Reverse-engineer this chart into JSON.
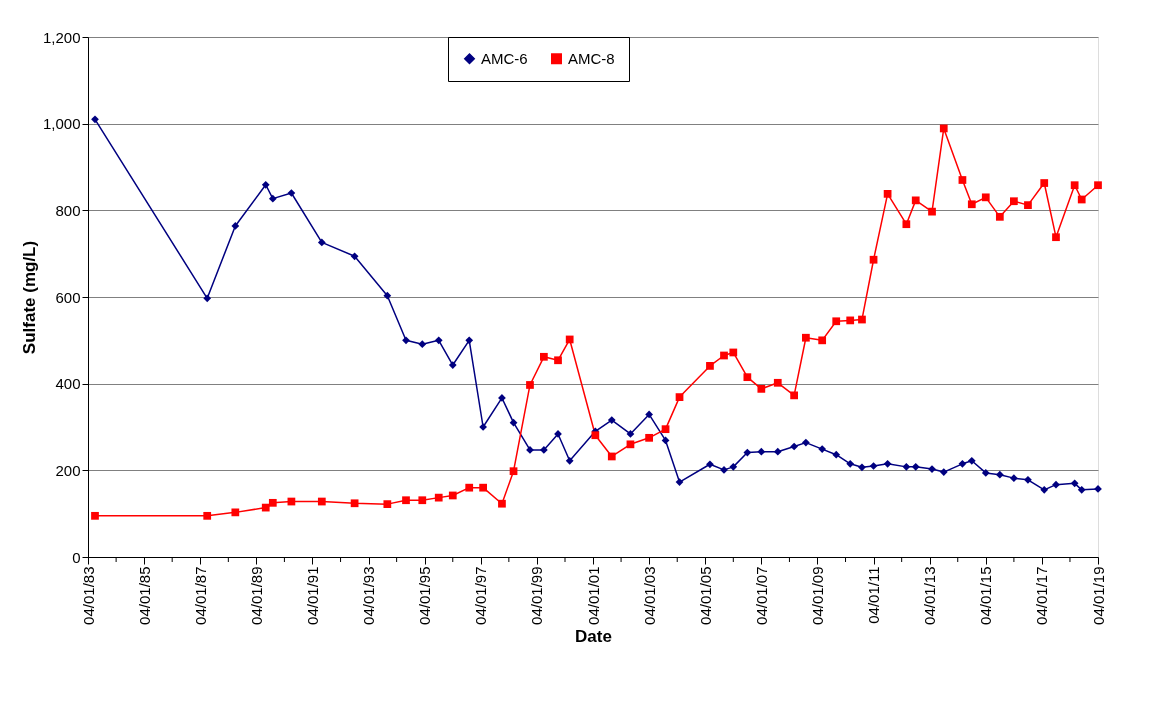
{
  "chart_data": {
    "type": "line",
    "xlabel": "Date",
    "ylabel": "Sulfate (mg/L)",
    "x": [
      "1983-07",
      "1987-07",
      "1988-07",
      "1989-08",
      "1989-11",
      "1990-07",
      "1991-08",
      "1992-10",
      "1993-12",
      "1994-08",
      "1995-03",
      "1995-10",
      "1996-04",
      "1996-11",
      "1997-05",
      "1998-01",
      "1998-06",
      "1999-01",
      "1999-07",
      "2000-01",
      "2000-06",
      "2001-05",
      "2001-12",
      "2002-08",
      "2003-04",
      "2003-11",
      "2004-05",
      "2005-06",
      "2005-12",
      "2006-04",
      "2006-10",
      "2007-04",
      "2007-11",
      "2008-06",
      "2008-11",
      "2009-06",
      "2009-12",
      "2010-06",
      "2010-11",
      "2011-04",
      "2011-10",
      "2012-06",
      "2012-10",
      "2013-05",
      "2013-10",
      "2014-06",
      "2014-10",
      "2015-04",
      "2015-10",
      "2016-04",
      "2016-10",
      "2017-05",
      "2017-10",
      "2018-06",
      "2018-09",
      "2019-04-01"
    ],
    "series": [
      {
        "name": "AMC-6",
        "color": "#000080",
        "marker": "diamond",
        "values": [
          1010,
          597,
          764,
          859,
          827,
          840,
          726,
          694,
          603,
          500,
          491,
          500,
          443,
          500,
          300,
          367,
          310,
          247,
          247,
          284,
          222,
          290,
          316,
          284,
          329,
          269,
          173,
          214,
          201,
          208,
          241,
          243,
          243,
          255,
          264,
          249,
          236,
          215,
          207,
          210,
          215,
          208,
          208,
          203,
          196,
          215,
          222,
          194,
          190,
          182,
          178,
          155,
          167,
          170,
          155,
          157
        ]
      },
      {
        "name": "AMC-8",
        "color": "#ff0000",
        "marker": "square",
        "values": [
          95,
          95,
          103,
          114,
          125,
          128,
          128,
          124,
          122,
          131,
          131,
          137,
          142,
          160,
          160,
          123,
          198,
          397,
          462,
          454,
          502,
          281,
          232,
          260,
          275,
          295,
          369,
          441,
          465,
          472,
          415,
          388,
          402,
          373,
          506,
          500,
          544,
          546,
          548,
          686,
          838,
          768,
          823,
          797,
          989,
          870,
          814,
          830,
          785,
          821,
          812,
          863,
          738,
          858,
          825,
          858
        ]
      }
    ],
    "xlim": [
      "1983-04-01",
      "2019-04-01"
    ],
    "xticks": [
      {
        "value": "1983-04-01",
        "label": "04/01/83"
      },
      {
        "value": "1984-04-01",
        "label": null
      },
      {
        "value": "1985-04-01",
        "label": "04/01/85"
      },
      {
        "value": "1986-04-01",
        "label": null
      },
      {
        "value": "1987-04-01",
        "label": "04/01/87"
      },
      {
        "value": "1988-04-01",
        "label": null
      },
      {
        "value": "1989-04-01",
        "label": "04/01/89"
      },
      {
        "value": "1990-04-01",
        "label": null
      },
      {
        "value": "1991-04-01",
        "label": "04/01/91"
      },
      {
        "value": "1992-04-01",
        "label": null
      },
      {
        "value": "1993-04-01",
        "label": "04/01/93"
      },
      {
        "value": "1994-04-01",
        "label": null
      },
      {
        "value": "1995-04-01",
        "label": "04/01/95"
      },
      {
        "value": "1996-04-01",
        "label": null
      },
      {
        "value": "1997-04-01",
        "label": "04/01/97"
      },
      {
        "value": "1998-04-01",
        "label": null
      },
      {
        "value": "1999-04-01",
        "label": "04/01/99"
      },
      {
        "value": "2000-04-01",
        "label": null
      },
      {
        "value": "2001-04-01",
        "label": "04/01/01"
      },
      {
        "value": "2002-04-01",
        "label": null
      },
      {
        "value": "2003-04-01",
        "label": "04/01/03"
      },
      {
        "value": "2004-04-01",
        "label": null
      },
      {
        "value": "2005-04-01",
        "label": "04/01/05"
      },
      {
        "value": "2006-04-01",
        "label": null
      },
      {
        "value": "2007-04-01",
        "label": "04/01/07"
      },
      {
        "value": "2008-04-01",
        "label": null
      },
      {
        "value": "2009-04-01",
        "label": "04/01/09"
      },
      {
        "value": "2010-04-01",
        "label": null
      },
      {
        "value": "2011-04-01",
        "label": "04/01/11"
      },
      {
        "value": "2012-04-01",
        "label": null
      },
      {
        "value": "2013-04-01",
        "label": "04/01/13"
      },
      {
        "value": "2014-04-01",
        "label": null
      },
      {
        "value": "2015-04-01",
        "label": "04/01/15"
      },
      {
        "value": "2016-04-01",
        "label": null
      },
      {
        "value": "2017-04-01",
        "label": "04/01/17"
      },
      {
        "value": "2018-04-01",
        "label": null
      },
      {
        "value": "2019-04-01",
        "label": "04/01/19"
      }
    ],
    "ylim": [
      0,
      1200
    ],
    "yticks": [
      0,
      200,
      400,
      600,
      800,
      {
        "value": 1000,
        "label": "1,000"
      },
      {
        "value": 1200,
        "label": "1,200"
      }
    ],
    "grid": "y",
    "legend": "top",
    "line_style": "solid"
  }
}
